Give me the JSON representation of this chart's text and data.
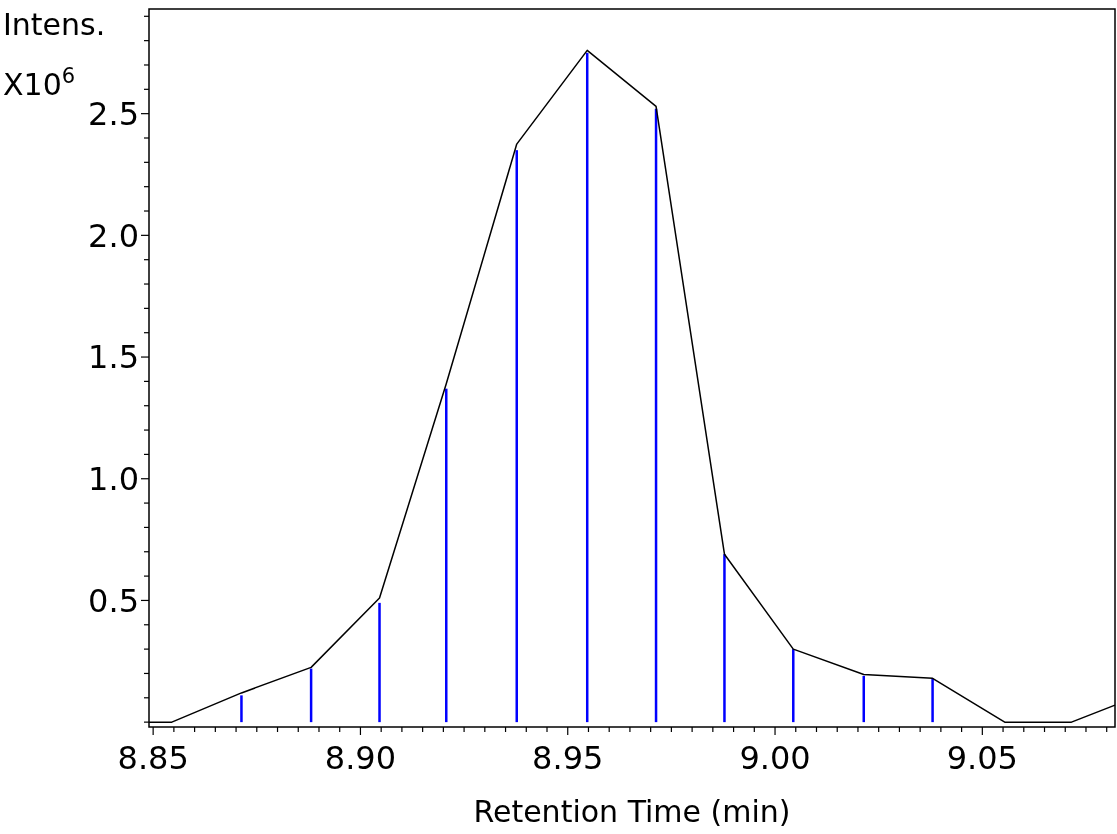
{
  "chart_data": {
    "type": "line",
    "xlabel": "Retention Time (min)",
    "ylabel": "Intens. X10$^{6}$",
    "xlim": [
      8.849,
      9.082
    ],
    "ylim": [
      -0.02,
      2.93
    ],
    "xticks": [
      {
        "value": 8.85,
        "label": "8.85"
      },
      {
        "value": 8.855,
        "label": null
      },
      {
        "value": 8.86,
        "label": null
      },
      {
        "value": 8.865,
        "label": null
      },
      {
        "value": 8.87,
        "label": null
      },
      {
        "value": 8.875,
        "label": null
      },
      {
        "value": 8.88,
        "label": null
      },
      {
        "value": 8.885,
        "label": null
      },
      {
        "value": 8.89,
        "label": null
      },
      {
        "value": 8.895,
        "label": null
      },
      {
        "value": 8.9,
        "label": "8.90"
      },
      {
        "value": 8.905,
        "label": null
      },
      {
        "value": 8.91,
        "label": null
      },
      {
        "value": 8.915,
        "label": null
      },
      {
        "value": 8.92,
        "label": null
      },
      {
        "value": 8.925,
        "label": null
      },
      {
        "value": 8.93,
        "label": null
      },
      {
        "value": 8.935,
        "label": null
      },
      {
        "value": 8.94,
        "label": null
      },
      {
        "value": 8.945,
        "label": null
      },
      {
        "value": 8.95,
        "label": "8.95"
      },
      {
        "value": 8.955,
        "label": null
      },
      {
        "value": 8.96,
        "label": null
      },
      {
        "value": 8.965,
        "label": null
      },
      {
        "value": 8.97,
        "label": null
      },
      {
        "value": 8.975,
        "label": null
      },
      {
        "value": 8.98,
        "label": null
      },
      {
        "value": 8.985,
        "label": null
      },
      {
        "value": 8.99,
        "label": null
      },
      {
        "value": 8.995,
        "label": null
      },
      {
        "value": 9.0,
        "label": "9.00"
      },
      {
        "value": 9.005,
        "label": null
      },
      {
        "value": 9.01,
        "label": null
      },
      {
        "value": 9.015,
        "label": null
      },
      {
        "value": 9.02,
        "label": null
      },
      {
        "value": 9.025,
        "label": null
      },
      {
        "value": 9.03,
        "label": null
      },
      {
        "value": 9.035,
        "label": null
      },
      {
        "value": 9.04,
        "label": null
      },
      {
        "value": 9.045,
        "label": null
      },
      {
        "value": 9.05,
        "label": "9.05"
      },
      {
        "value": 9.055,
        "label": null
      },
      {
        "value": 9.06,
        "label": null
      },
      {
        "value": 9.065,
        "label": null
      },
      {
        "value": 9.07,
        "label": null
      },
      {
        "value": 9.075,
        "label": null
      },
      {
        "value": 9.08,
        "label": null
      }
    ],
    "yticks": [
      {
        "value": 0,
        "label": null
      },
      {
        "value": 0.1,
        "label": null
      },
      {
        "value": 0.2,
        "label": null
      },
      {
        "value": 0.3,
        "label": null
      },
      {
        "value": 0.4,
        "label": null
      },
      {
        "value": 0.5,
        "label": "0.5"
      },
      {
        "value": 0.6,
        "label": null
      },
      {
        "value": 0.7,
        "label": null
      },
      {
        "value": 0.8,
        "label": null
      },
      {
        "value": 0.9,
        "label": null
      },
      {
        "value": 1.0,
        "label": "1.0"
      },
      {
        "value": 1.1,
        "label": null
      },
      {
        "value": 1.2,
        "label": null
      },
      {
        "value": 1.3,
        "label": null
      },
      {
        "value": 1.4,
        "label": null
      },
      {
        "value": 1.5,
        "label": "1.5"
      },
      {
        "value": 1.6,
        "label": null
      },
      {
        "value": 1.7,
        "label": null
      },
      {
        "value": 1.8,
        "label": null
      },
      {
        "value": 1.9,
        "label": null
      },
      {
        "value": 2.0,
        "label": "2.0"
      },
      {
        "value": 2.1,
        "label": null
      },
      {
        "value": 2.2,
        "label": null
      },
      {
        "value": 2.3,
        "label": null
      },
      {
        "value": 2.4,
        "label": null
      },
      {
        "value": 2.5,
        "label": "2.5"
      },
      {
        "value": 2.6,
        "label": null
      },
      {
        "value": 2.7,
        "label": null
      },
      {
        "value": 2.8,
        "label": null
      },
      {
        "value": 2.9,
        "label": null
      }
    ],
    "grid": false,
    "series": [
      {
        "color": "#000000",
        "x": [
          8.849,
          8.8545,
          8.8713,
          8.8881,
          8.9046,
          8.9207,
          8.9377,
          8.9547,
          8.9713,
          8.9878,
          9.0044,
          9.0214,
          9.038,
          9.0554,
          9.0715,
          9.082
        ],
        "values": [
          0.0,
          0.0,
          0.12,
          0.225,
          0.51,
          1.39,
          2.375,
          2.76,
          2.53,
          0.69,
          0.3,
          0.196,
          0.18,
          0.0,
          0.0,
          0.07
        ]
      },
      {
        "type": "bar",
        "color": "#0000ff",
        "x": [
          8.8713,
          8.8881,
          8.9046,
          8.9207,
          8.9377,
          8.9547,
          8.9713,
          8.9878,
          9.0044,
          9.0214,
          9.038
        ],
        "values": [
          0.11,
          0.22,
          0.49,
          1.37,
          2.35,
          2.75,
          2.52,
          0.69,
          0.3,
          0.19,
          0.18
        ]
      }
    ]
  }
}
